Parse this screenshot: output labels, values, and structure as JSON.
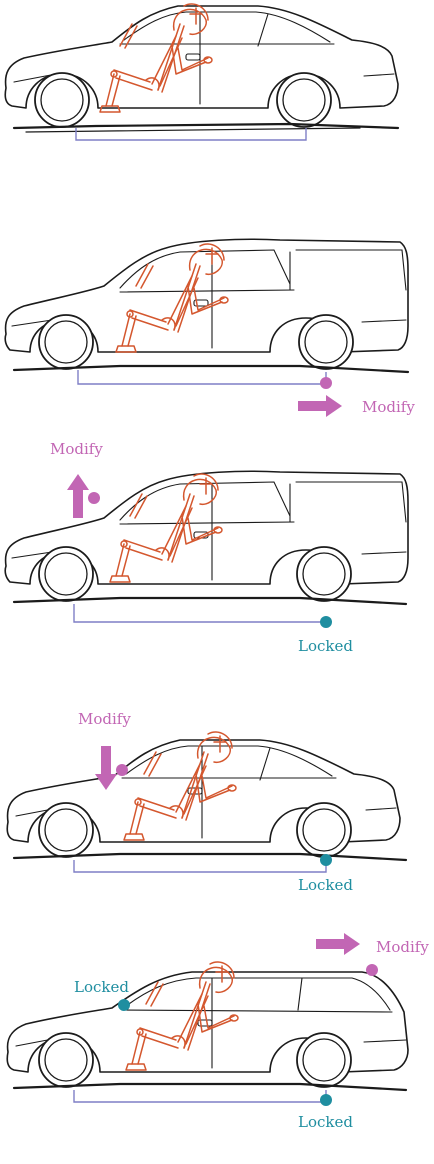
{
  "colors": {
    "modify": "#c266b4",
    "locked": "#1f8ea0",
    "outline": "#1b1b1b",
    "dummy": "#d4572e",
    "guide": "#7f7fc6"
  },
  "panels": [
    {
      "body": "sedan",
      "annotations": []
    },
    {
      "body": "truck",
      "annotations": [
        {
          "point": "wheelbase-rear",
          "state": "modify",
          "label": "Modify",
          "arrow": "right"
        }
      ]
    },
    {
      "body": "suv",
      "annotations": [
        {
          "point": "hood",
          "state": "modify",
          "label": "Modify",
          "arrow": "up"
        },
        {
          "point": "wheelbase-rear",
          "state": "locked",
          "label": "Locked"
        }
      ]
    },
    {
      "body": "sedan-long",
      "annotations": [
        {
          "point": "hood",
          "state": "modify",
          "label": "Modify",
          "arrow": "down"
        },
        {
          "point": "wheelbase-rear",
          "state": "locked",
          "label": "Locked"
        }
      ]
    },
    {
      "body": "wagon",
      "annotations": [
        {
          "point": "roof-rear",
          "state": "modify",
          "label": "Modify",
          "arrow": "right"
        },
        {
          "point": "hood",
          "state": "locked",
          "label": "Locked"
        },
        {
          "point": "wheelbase-rear",
          "state": "locked",
          "label": "Locked"
        }
      ]
    }
  ]
}
